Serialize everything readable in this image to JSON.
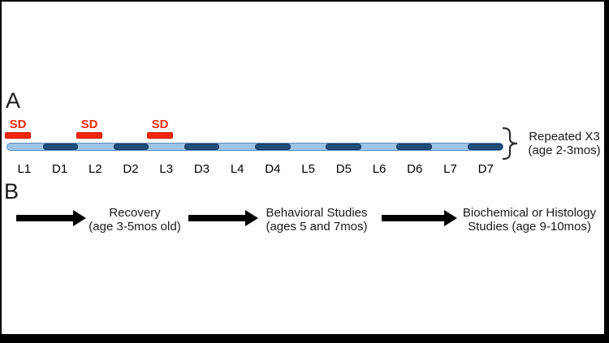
{
  "figure": {
    "panel_a": {
      "label": "A",
      "sd_label": "SD",
      "segments": [
        {
          "label": "L1",
          "type": "light"
        },
        {
          "label": "D1",
          "type": "dark"
        },
        {
          "label": "L2",
          "type": "light"
        },
        {
          "label": "D2",
          "type": "dark"
        },
        {
          "label": "L3",
          "type": "light"
        },
        {
          "label": "D3",
          "type": "dark"
        },
        {
          "label": "L4",
          "type": "light"
        },
        {
          "label": "D4",
          "type": "dark"
        },
        {
          "label": "L5",
          "type": "light"
        },
        {
          "label": "D5",
          "type": "dark"
        },
        {
          "label": "L6",
          "type": "light"
        },
        {
          "label": "D6",
          "type": "dark"
        },
        {
          "label": "L7",
          "type": "light"
        },
        {
          "label": "D7",
          "type": "dark"
        }
      ],
      "repeat_note_line1": "Repeated X3",
      "repeat_note_line2": "(age 2-3mos)"
    },
    "panel_b": {
      "label": "B",
      "steps": [
        {
          "line1": "Recovery",
          "line2": "(age 3-5mos old)"
        },
        {
          "line1": "Behavioral Studies",
          "line2": "(ages 5 and 7mos)"
        },
        {
          "line1": "Biochemical or Histology",
          "line2": "Studies (age 9-10mos)"
        }
      ]
    }
  },
  "colors": {
    "light_blue": "#9DC3E6",
    "light_blue_border": "#5B8DC0",
    "dark_blue": "#1F4E79",
    "dark_blue_border": "#17365D",
    "red": "#F42705",
    "red_border": "#C81400",
    "arrow_black": "#000000"
  }
}
